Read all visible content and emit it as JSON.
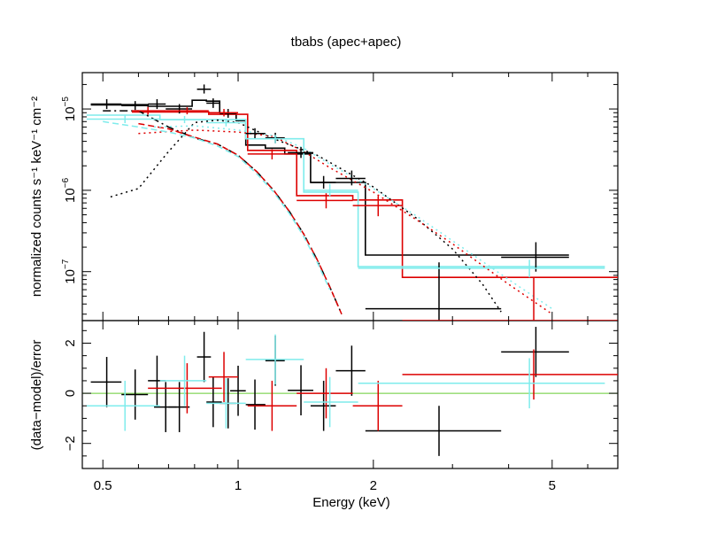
{
  "chart_data": {
    "type": "scatter",
    "title": "tbabs (apec+apec)",
    "xlabel": "Energy (keV)",
    "xscale": "log",
    "xlim": [
      0.45,
      7.0
    ],
    "x_ticks": [
      0.5,
      1,
      2,
      5
    ],
    "x_tick_labels": [
      "0.5",
      "1",
      "2",
      "5"
    ],
    "colors": {
      "black": "#000000",
      "red": "#dd0000",
      "cyan": "#7fecec",
      "green": "#66cc33"
    },
    "top_panel": {
      "ylabel": "normalized counts s⁻¹ keV⁻¹ cm⁻²",
      "yscale": "log",
      "ylim": [
        2.5e-08,
        2.8e-05
      ],
      "y_tick_labels": [
        {
          "value": 1e-05,
          "base": "10",
          "exp": "−5"
        },
        {
          "value": 1e-06,
          "base": "10",
          "exp": "−6"
        },
        {
          "value": 1e-07,
          "base": "10",
          "exp": "−7"
        }
      ],
      "series": [
        {
          "name": "black-data",
          "color": "black",
          "points": [
            {
              "x": 0.51,
              "xlo": 0.47,
              "xhi": 0.55,
              "y": 1.15e-05,
              "ylo": 1e-05,
              "yhi": 1.32e-05
            },
            {
              "x": 0.59,
              "xlo": 0.55,
              "xhi": 0.63,
              "y": 1.1e-05,
              "ylo": 9.7e-06,
              "yhi": 1.25e-05
            },
            {
              "x": 0.66,
              "xlo": 0.63,
              "xhi": 0.69,
              "y": 1.15e-05,
              "ylo": 1e-05,
              "yhi": 1.32e-05
            },
            {
              "x": 0.74,
              "xlo": 0.69,
              "xhi": 0.79,
              "y": 1e-05,
              "ylo": 8.8e-06,
              "yhi": 1.15e-05
            },
            {
              "x": 0.84,
              "xlo": 0.81,
              "xhi": 0.87,
              "y": 1.75e-05,
              "ylo": 1.55e-05,
              "yhi": 2e-05
            },
            {
              "x": 0.88,
              "xlo": 0.85,
              "xhi": 0.91,
              "y": 1.18e-05,
              "ylo": 1.03e-05,
              "yhi": 1.35e-05
            },
            {
              "x": 0.95,
              "xlo": 0.91,
              "xhi": 0.99,
              "y": 8.8e-06,
              "ylo": 7.8e-06,
              "yhi": 1e-05
            },
            {
              "x": 1.09,
              "xlo": 1.04,
              "xhi": 1.15,
              "y": 5e-06,
              "ylo": 4.3e-06,
              "yhi": 5.8e-06
            },
            {
              "x": 1.21,
              "xlo": 1.15,
              "xhi": 1.27,
              "y": 4.4e-06,
              "ylo": 3.8e-06,
              "yhi": 5.1e-06
            },
            {
              "x": 1.38,
              "xlo": 1.29,
              "xhi": 1.47,
              "y": 2.9e-06,
              "ylo": 2.5e-06,
              "yhi": 3.4e-06
            },
            {
              "x": 1.55,
              "xlo": 1.45,
              "xhi": 1.65,
              "y": 1.25e-06,
              "ylo": 1.05e-06,
              "yhi": 1.5e-06
            },
            {
              "x": 1.79,
              "xlo": 1.65,
              "xhi": 1.92,
              "y": 1.4e-06,
              "ylo": 1.15e-06,
              "yhi": 1.75e-06
            },
            {
              "x": 2.8,
              "xlo": 1.92,
              "xhi": 3.85,
              "y": 3.5e-08,
              "ylo": 2.5e-08,
              "yhi": 1.3e-07
            },
            {
              "x": 4.6,
              "xlo": 3.85,
              "xhi": 5.45,
              "y": 1.5e-07,
              "ylo": 1e-07,
              "yhi": 2.3e-07
            }
          ]
        },
        {
          "name": "red-data",
          "color": "red",
          "points": [
            {
              "x": 0.63,
              "xlo": 0.58,
              "xhi": 0.69,
              "y": 9.5e-06,
              "ylo": 8.5e-06,
              "yhi": 1.06e-05
            },
            {
              "x": 0.77,
              "xlo": 0.69,
              "xhi": 0.86,
              "y": 9.5e-06,
              "ylo": 8.6e-06,
              "yhi": 1.05e-05
            },
            {
              "x": 0.93,
              "xlo": 0.86,
              "xhi": 1.0,
              "y": 9e-06,
              "ylo": 8.1e-06,
              "yhi": 1e-05
            },
            {
              "x": 1.19,
              "xlo": 1.05,
              "xhi": 1.35,
              "y": 2.8e-06,
              "ylo": 2.4e-06,
              "yhi": 3.2e-06
            },
            {
              "x": 1.57,
              "xlo": 1.35,
              "xhi": 1.8,
              "y": 7.5e-07,
              "ylo": 6e-07,
              "yhi": 9.2e-07
            },
            {
              "x": 2.05,
              "xlo": 1.8,
              "xhi": 2.32,
              "y": 6.5e-07,
              "ylo": 4.8e-07,
              "yhi": 8.5e-07
            },
            {
              "x": 4.55,
              "xlo": 2.32,
              "xhi": 7.0,
              "y": 2.5e-08,
              "ylo": 2.5e-08,
              "yhi": 8.5e-08
            }
          ]
        },
        {
          "name": "cyan-data",
          "color": "cyan",
          "points": [
            {
              "x": 0.56,
              "xlo": 0.46,
              "xhi": 0.67,
              "y": 7.5e-06,
              "ylo": 6.7e-06,
              "yhi": 8.4e-06
            },
            {
              "x": 0.76,
              "xlo": 0.67,
              "xhi": 0.85,
              "y": 7.4e-06,
              "ylo": 6.7e-06,
              "yhi": 8.2e-06
            },
            {
              "x": 0.94,
              "xlo": 0.85,
              "xhi": 1.04,
              "y": 6.8e-06,
              "ylo": 6.1e-06,
              "yhi": 7.6e-06
            },
            {
              "x": 1.21,
              "xlo": 1.04,
              "xhi": 1.4,
              "y": 4.3e-06,
              "ylo": 3.8e-06,
              "yhi": 4.8e-06
            },
            {
              "x": 1.6,
              "xlo": 1.4,
              "xhi": 1.85,
              "y": 1e-06,
              "ylo": 8.5e-07,
              "yhi": 1.2e-06
            },
            {
              "x": 4.45,
              "xlo": 1.85,
              "xhi": 6.55,
              "y": 1.1e-07,
              "ylo": 8.5e-08,
              "yhi": 1.4e-07
            }
          ]
        }
      ],
      "model_steps": [
        {
          "name": "black-model",
          "color": "black",
          "edges": [
            0.47,
            0.55,
            0.63,
            0.69,
            0.79,
            0.85,
            0.91,
            0.99,
            1.04,
            1.15,
            1.27,
            1.45,
            1.65,
            1.92,
            3.85,
            5.45
          ],
          "values": [
            1.12e-05,
            1.13e-05,
            1.08e-05,
            1.08e-05,
            1.28e-05,
            1.25e-05,
            9e-06,
            7.2e-06,
            3.6e-06,
            3.3e-06,
            2.8e-06,
            1.25e-06,
            1.25e-06,
            1.6e-07,
            1.6e-07
          ]
        },
        {
          "name": "red-model",
          "color": "red",
          "edges": [
            0.58,
            0.69,
            0.86,
            1.0,
            1.05,
            1.35,
            1.8,
            2.32,
            7.0
          ],
          "values": [
            9.2e-06,
            9.2e-06,
            8.6e-06,
            8.6e-06,
            3.1e-06,
            8.6e-07,
            7.6e-07,
            8.5e-08
          ]
        },
        {
          "name": "cyan-model",
          "color": "cyan",
          "edges": [
            0.46,
            0.67,
            0.85,
            1.04,
            1.4,
            1.85,
            6.55
          ],
          "values": [
            8.4e-06,
            7.4e-06,
            7.4e-06,
            4.3e-06,
            9.5e-07,
            1.15e-07
          ]
        }
      ],
      "model_components": [
        {
          "name": "black-soft-apec",
          "color": "black",
          "dash": "dashdot",
          "x": [
            0.5,
            0.6,
            0.7,
            0.8,
            0.9,
            1.0,
            1.1,
            1.2,
            1.3,
            1.4,
            1.5,
            1.6,
            1.7
          ],
          "y": [
            9.5e-06,
            9.5e-06,
            6e-06,
            4.4e-06,
            3.7e-06,
            2.7e-06,
            1.7e-06,
            1e-06,
            5.5e-07,
            2.9e-07,
            1.4e-07,
            6.5e-08,
            3e-08
          ]
        },
        {
          "name": "black-hard-apec",
          "color": "black",
          "dash": "dot",
          "x": [
            0.52,
            0.6,
            0.7,
            0.8,
            0.9,
            1.0,
            1.2,
            1.5,
            2.0,
            2.5,
            3.0,
            3.5,
            3.85
          ],
          "y": [
            8.3e-07,
            1.05e-06,
            3e-06,
            6.8e-06,
            7.3e-06,
            6.8e-06,
            4.3e-06,
            2.7e-06,
            1.1e-06,
            4.5e-07,
            1.9e-07,
            7e-08,
            3.2e-08
          ]
        },
        {
          "name": "red-soft-apec",
          "color": "red",
          "dash": "dash",
          "x": [
            0.6,
            0.7,
            0.8,
            0.9,
            1.0,
            1.1,
            1.2,
            1.3,
            1.4,
            1.5,
            1.6,
            1.7
          ],
          "y": [
            6.6e-06,
            5.7e-06,
            4.5e-06,
            3.7e-06,
            2.7e-06,
            1.7e-06,
            1e-06,
            5.5e-07,
            2.9e-07,
            1.4e-07,
            6.5e-08,
            3e-08
          ]
        },
        {
          "name": "red-hard-apec",
          "color": "red",
          "dash": "dot",
          "x": [
            0.6,
            0.8,
            1.0,
            1.2,
            1.4,
            1.6,
            2.0,
            2.5,
            3.0,
            4.0,
            5.0
          ],
          "y": [
            5e-06,
            5.5e-06,
            5.2e-06,
            4.6e-06,
            3e-06,
            1.9e-06,
            9.5e-07,
            4.3e-07,
            2.2e-07,
            7e-08,
            3e-08
          ]
        },
        {
          "name": "cyan-soft-apec",
          "color": "cyan",
          "dash": "dash",
          "x": [
            0.5,
            0.6,
            0.7,
            0.8,
            0.9,
            1.0,
            1.1,
            1.2,
            1.3,
            1.4,
            1.5,
            1.6
          ],
          "y": [
            7e-06,
            6e-06,
            5.2e-06,
            4.4e-06,
            3.5e-06,
            2.6e-06,
            1.6e-06,
            9.5e-07,
            5.2e-07,
            2.7e-07,
            1.3e-07,
            6e-08
          ]
        },
        {
          "name": "cyan-hard-apec",
          "color": "cyan",
          "dash": "dot",
          "x": [
            0.65,
            0.8,
            1.0,
            1.2,
            1.4,
            1.6,
            2.0,
            2.5,
            3.0,
            4.0,
            5.0
          ],
          "y": [
            6e-06,
            6.2e-06,
            5.5e-06,
            4.7e-06,
            3.3e-06,
            2.1e-06,
            1.05e-06,
            4.8e-07,
            2.4e-07,
            8e-08,
            3.5e-08
          ]
        }
      ]
    },
    "bottom_panel": {
      "ylabel": "(data−model)/error",
      "ylim": [
        -3.0,
        2.9
      ],
      "y_ticks": [
        2,
        0,
        -2
      ],
      "y_tick_labels": [
        "2",
        "0",
        "−2"
      ],
      "zero_line_color": "green",
      "series": [
        {
          "name": "black-resid",
          "color": "black",
          "points": [
            {
              "x": 0.51,
              "xlo": 0.47,
              "xhi": 0.55,
              "y": 0.45,
              "err": 1.0
            },
            {
              "x": 0.59,
              "xlo": 0.55,
              "xhi": 0.63,
              "y": -0.05,
              "err": 1.0
            },
            {
              "x": 0.66,
              "xlo": 0.63,
              "xhi": 0.69,
              "y": 0.5,
              "err": 1.0
            },
            {
              "x": 0.69,
              "xlo": 0.65,
              "xhi": 0.73,
              "y": -0.55,
              "err": 1.0
            },
            {
              "x": 0.74,
              "xlo": 0.7,
              "xhi": 0.78,
              "y": -0.55,
              "err": 1.0
            },
            {
              "x": 0.84,
              "xlo": 0.81,
              "xhi": 0.87,
              "y": 1.45,
              "err": 1.0
            },
            {
              "x": 0.88,
              "xlo": 0.85,
              "xhi": 0.92,
              "y": -0.35,
              "err": 1.0
            },
            {
              "x": 0.95,
              "xlo": 0.91,
              "xhi": 0.99,
              "y": -0.4,
              "err": 1.0
            },
            {
              "x": 1.0,
              "xlo": 0.96,
              "xhi": 1.04,
              "y": 0.1,
              "err": 1.0
            },
            {
              "x": 1.09,
              "xlo": 1.04,
              "xhi": 1.15,
              "y": -0.45,
              "err": 1.0
            },
            {
              "x": 1.21,
              "xlo": 1.15,
              "xhi": 1.27,
              "y": 1.3,
              "err": 1.0
            },
            {
              "x": 1.38,
              "xlo": 1.29,
              "xhi": 1.47,
              "y": 0.12,
              "err": 1.0
            },
            {
              "x": 1.55,
              "xlo": 1.45,
              "xhi": 1.65,
              "y": -0.5,
              "err": 1.0
            },
            {
              "x": 1.79,
              "xlo": 1.65,
              "xhi": 1.92,
              "y": 0.9,
              "err": 1.0
            },
            {
              "x": 2.8,
              "xlo": 1.92,
              "xhi": 3.85,
              "y": -1.5,
              "err": 1.0
            },
            {
              "x": 4.6,
              "xlo": 3.85,
              "xhi": 5.45,
              "y": 1.65,
              "err": 1.0
            }
          ]
        },
        {
          "name": "red-resid",
          "color": "red",
          "points": [
            {
              "x": 0.77,
              "xlo": 0.63,
              "xhi": 0.92,
              "y": 0.2,
              "err": 1.0
            },
            {
              "x": 0.93,
              "xlo": 0.86,
              "xhi": 1.0,
              "y": 0.65,
              "err": 1.0
            },
            {
              "x": 1.19,
              "xlo": 1.05,
              "xhi": 1.35,
              "y": -0.5,
              "err": 1.0
            },
            {
              "x": 1.57,
              "xlo": 1.35,
              "xhi": 1.8,
              "y": 0.0,
              "err": 1.0
            },
            {
              "x": 2.05,
              "xlo": 1.8,
              "xhi": 2.32,
              "y": -0.5,
              "err": 1.0
            },
            {
              "x": 4.55,
              "xlo": 2.32,
              "xhi": 7.0,
              "y": 0.75,
              "err": 1.0
            }
          ]
        },
        {
          "name": "cyan-resid",
          "color": "cyan",
          "points": [
            {
              "x": 0.56,
              "xlo": 0.46,
              "xhi": 0.67,
              "y": -0.5,
              "err": 1.0
            },
            {
              "x": 0.76,
              "xlo": 0.67,
              "xhi": 0.85,
              "y": 0.5,
              "err": 1.0
            },
            {
              "x": 0.94,
              "xlo": 0.85,
              "xhi": 1.04,
              "y": -0.4,
              "err": 1.0
            },
            {
              "x": 1.21,
              "xlo": 1.04,
              "xhi": 1.4,
              "y": 1.35,
              "err": 1.0
            },
            {
              "x": 1.6,
              "xlo": 1.4,
              "xhi": 1.85,
              "y": -0.35,
              "err": 1.0
            },
            {
              "x": 4.45,
              "xlo": 1.85,
              "xhi": 6.55,
              "y": 0.4,
              "err": 1.0
            }
          ]
        }
      ]
    }
  }
}
